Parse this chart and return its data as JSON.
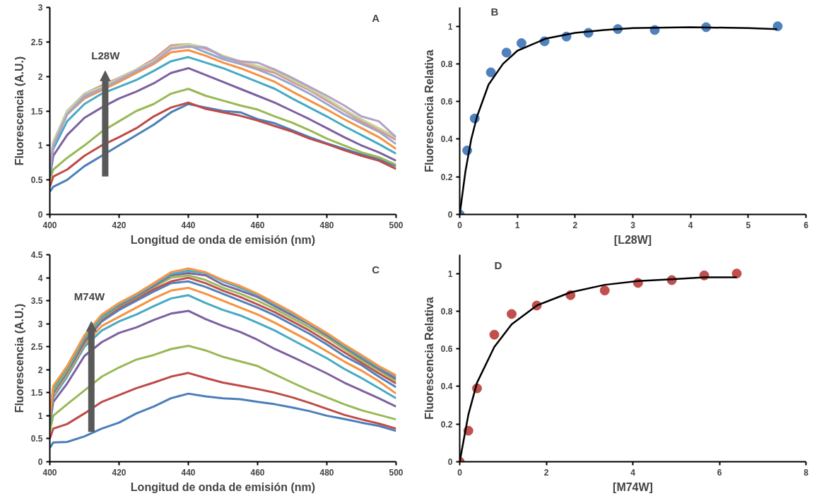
{
  "chart_data": [
    {
      "type": "line",
      "xlabel": "Longitud de onda de emisión (nm)",
      "ylabel": "Fluorescencia (A.U.)",
      "annotations": [
        "A",
        "L28W"
      ],
      "xlim": [
        400,
        500
      ],
      "ylim": [
        0,
        3
      ],
      "xticks": [
        400,
        420,
        440,
        460,
        480,
        500
      ],
      "yticks": [
        0,
        0.5,
        1,
        1.5,
        2,
        2.5,
        3
      ],
      "grid": false,
      "line_style": "solid",
      "marker": "none",
      "x": [
        400,
        401,
        405,
        410,
        415,
        420,
        425,
        430,
        435,
        440,
        445,
        450,
        455,
        460,
        465,
        470,
        475,
        480,
        485,
        490,
        495,
        500
      ],
      "series": [
        {
          "color": "#4a7ebb",
          "values": [
            0.33,
            0.4,
            0.5,
            0.7,
            0.85,
            1.0,
            1.15,
            1.3,
            1.48,
            1.6,
            1.55,
            1.5,
            1.48,
            1.38,
            1.32,
            1.22,
            1.12,
            1.03,
            0.95,
            0.87,
            0.8,
            0.7
          ]
        },
        {
          "color": "#be4b48",
          "values": [
            0.4,
            0.55,
            0.65,
            0.85,
            1.0,
            1.12,
            1.25,
            1.42,
            1.55,
            1.62,
            1.53,
            1.48,
            1.43,
            1.36,
            1.28,
            1.2,
            1.1,
            1.02,
            0.93,
            0.85,
            0.78,
            0.66
          ]
        },
        {
          "color": "#98b954",
          "values": [
            0.5,
            0.65,
            0.82,
            1.0,
            1.2,
            1.35,
            1.5,
            1.6,
            1.75,
            1.82,
            1.72,
            1.65,
            1.58,
            1.52,
            1.42,
            1.33,
            1.22,
            1.1,
            1.0,
            0.9,
            0.83,
            0.72
          ]
        },
        {
          "color": "#7d60a0",
          "values": [
            0.55,
            0.85,
            1.15,
            1.4,
            1.55,
            1.68,
            1.78,
            1.9,
            2.05,
            2.12,
            2.02,
            1.92,
            1.82,
            1.72,
            1.62,
            1.5,
            1.38,
            1.25,
            1.12,
            1.0,
            0.9,
            0.78
          ]
        },
        {
          "color": "#46aac5",
          "values": [
            0.6,
            0.95,
            1.35,
            1.6,
            1.75,
            1.85,
            1.95,
            2.08,
            2.22,
            2.28,
            2.2,
            2.12,
            2.02,
            1.92,
            1.82,
            1.68,
            1.55,
            1.42,
            1.28,
            1.15,
            1.02,
            0.88
          ]
        },
        {
          "color": "#f69240",
          "values": [
            0.65,
            1.0,
            1.45,
            1.68,
            1.8,
            1.92,
            2.05,
            2.18,
            2.35,
            2.38,
            2.3,
            2.2,
            2.12,
            2.02,
            1.92,
            1.78,
            1.65,
            1.52,
            1.38,
            1.25,
            1.12,
            0.95
          ]
        },
        {
          "color": "#94a8d0",
          "values": [
            0.65,
            1.0,
            1.45,
            1.7,
            1.82,
            1.95,
            2.08,
            2.2,
            2.4,
            2.45,
            2.35,
            2.25,
            2.18,
            2.1,
            2.0,
            1.88,
            1.75,
            1.6,
            1.45,
            1.32,
            1.2,
            1.02
          ]
        },
        {
          "color": "#d99694",
          "values": [
            0.7,
            1.05,
            1.5,
            1.75,
            1.87,
            1.98,
            2.1,
            2.25,
            2.45,
            2.47,
            2.4,
            2.3,
            2.2,
            2.12,
            2.05,
            1.92,
            1.8,
            1.65,
            1.5,
            1.35,
            1.22,
            1.08
          ]
        },
        {
          "color": "#c3d69b",
          "values": [
            0.7,
            1.05,
            1.5,
            1.75,
            1.85,
            1.97,
            2.1,
            2.22,
            2.42,
            2.47,
            2.42,
            2.3,
            2.22,
            2.15,
            2.08,
            1.95,
            1.82,
            1.68,
            1.52,
            1.38,
            1.25,
            1.12
          ]
        },
        {
          "color": "#b3a2c7",
          "values": [
            0.68,
            1.0,
            1.45,
            1.72,
            1.82,
            1.95,
            2.08,
            2.2,
            2.4,
            2.43,
            2.42,
            2.28,
            2.22,
            2.2,
            2.1,
            1.98,
            1.85,
            1.72,
            1.58,
            1.42,
            1.35,
            1.12
          ]
        }
      ]
    },
    {
      "type": "scatter",
      "xlabel": "[L28W]",
      "ylabel": "Fluorescencia Relativa",
      "annotations": [
        "B"
      ],
      "xlim": [
        0,
        6
      ],
      "ylim": [
        0,
        1.1
      ],
      "xticks": [
        0,
        1,
        2,
        3,
        4,
        5,
        6
      ],
      "yticks": [
        0,
        0.2,
        0.4,
        0.6,
        0.8,
        1
      ],
      "grid": false,
      "series": [
        {
          "marker": "circle",
          "color": "#4f81bd",
          "x": [
            0,
            0.13,
            0.26,
            0.54,
            0.81,
            1.07,
            1.47,
            1.85,
            2.23,
            2.74,
            3.38,
            4.27,
            5.51
          ],
          "values": [
            0,
            0.34,
            0.51,
            0.755,
            0.86,
            0.91,
            0.92,
            0.945,
            0.965,
            0.985,
            0.98,
            0.995,
            1.0
          ]
        },
        {
          "type": "line",
          "color": "#000000",
          "x": [
            0,
            0.1,
            0.2,
            0.3,
            0.5,
            0.75,
            1,
            1.5,
            2,
            2.5,
            3,
            4,
            5,
            5.5
          ],
          "values": [
            0,
            0.23,
            0.4,
            0.52,
            0.69,
            0.8,
            0.87,
            0.935,
            0.965,
            0.98,
            0.99,
            0.995,
            0.99,
            0.985
          ]
        }
      ]
    },
    {
      "type": "line",
      "xlabel": "Longitud de onda de emisión (nm)",
      "ylabel": "Fluorescencia (A.U.)",
      "annotations": [
        "C",
        "M74W"
      ],
      "xlim": [
        400,
        500
      ],
      "ylim": [
        0,
        4.5
      ],
      "xticks": [
        400,
        420,
        440,
        460,
        480,
        500
      ],
      "yticks": [
        0,
        0.5,
        1,
        1.5,
        2,
        2.5,
        3,
        3.5,
        4,
        4.5
      ],
      "grid": false,
      "line_style": "solid",
      "marker": "none",
      "x": [
        400,
        401,
        405,
        410,
        415,
        420,
        425,
        430,
        435,
        440,
        445,
        450,
        455,
        460,
        465,
        470,
        475,
        480,
        485,
        490,
        495,
        500
      ],
      "series": [
        {
          "color": "#4a7ebb",
          "values": [
            0.3,
            0.42,
            0.43,
            0.55,
            0.72,
            0.85,
            1.05,
            1.2,
            1.38,
            1.48,
            1.42,
            1.38,
            1.36,
            1.3,
            1.25,
            1.18,
            1.1,
            1.0,
            0.93,
            0.85,
            0.78,
            0.67
          ]
        },
        {
          "color": "#be4b48",
          "values": [
            0.5,
            0.72,
            0.82,
            1.05,
            1.3,
            1.45,
            1.6,
            1.72,
            1.85,
            1.93,
            1.82,
            1.72,
            1.65,
            1.58,
            1.5,
            1.4,
            1.28,
            1.15,
            1.02,
            0.92,
            0.83,
            0.72
          ]
        },
        {
          "color": "#98b954",
          "values": [
            0.65,
            1.0,
            1.25,
            1.55,
            1.85,
            2.05,
            2.22,
            2.32,
            2.45,
            2.52,
            2.42,
            2.28,
            2.18,
            2.08,
            1.9,
            1.72,
            1.55,
            1.4,
            1.25,
            1.12,
            1.02,
            0.92
          ]
        },
        {
          "color": "#7d60a0",
          "values": [
            0.8,
            1.3,
            1.7,
            2.3,
            2.6,
            2.8,
            2.92,
            3.08,
            3.22,
            3.28,
            3.1,
            2.95,
            2.82,
            2.65,
            2.45,
            2.28,
            2.1,
            1.92,
            1.72,
            1.55,
            1.38,
            1.2
          ]
        },
        {
          "color": "#46aac5",
          "values": [
            0.85,
            1.4,
            1.85,
            2.5,
            2.85,
            3.05,
            3.2,
            3.38,
            3.55,
            3.62,
            3.45,
            3.3,
            3.18,
            3.02,
            2.85,
            2.65,
            2.45,
            2.25,
            2.02,
            1.82,
            1.6,
            1.38
          ]
        },
        {
          "color": "#f69240",
          "values": [
            0.9,
            1.45,
            1.9,
            2.55,
            2.95,
            3.15,
            3.35,
            3.55,
            3.72,
            3.78,
            3.65,
            3.5,
            3.35,
            3.2,
            3.02,
            2.82,
            2.62,
            2.4,
            2.18,
            1.98,
            1.75,
            1.48
          ]
        },
        {
          "color": "#4f81bd",
          "values": [
            0.9,
            1.5,
            1.95,
            2.6,
            3.05,
            3.3,
            3.5,
            3.7,
            3.88,
            3.92,
            3.8,
            3.65,
            3.5,
            3.35,
            3.18,
            2.98,
            2.78,
            2.55,
            2.3,
            2.1,
            1.85,
            1.62
          ]
        },
        {
          "color": "#c0504d",
          "values": [
            0.95,
            1.55,
            2.0,
            2.65,
            3.1,
            3.35,
            3.55,
            3.75,
            3.92,
            4.0,
            3.88,
            3.72,
            3.58,
            3.42,
            3.25,
            3.05,
            2.85,
            2.62,
            2.38,
            2.15,
            1.92,
            1.7
          ]
        },
        {
          "color": "#9bbb59",
          "values": [
            0.95,
            1.55,
            2.0,
            2.68,
            3.12,
            3.38,
            3.58,
            3.8,
            4.0,
            4.05,
            3.95,
            3.78,
            3.65,
            3.5,
            3.32,
            3.12,
            2.92,
            2.7,
            2.45,
            2.2,
            1.98,
            1.75
          ]
        },
        {
          "color": "#8064a2",
          "values": [
            1.0,
            1.6,
            2.05,
            2.7,
            3.15,
            3.4,
            3.6,
            3.82,
            4.05,
            4.1,
            4.05,
            3.85,
            3.72,
            3.58,
            3.38,
            3.18,
            2.98,
            2.75,
            2.5,
            2.25,
            2.02,
            1.8
          ]
        },
        {
          "color": "#4bacc6",
          "values": [
            1.0,
            1.6,
            2.05,
            2.7,
            3.15,
            3.42,
            3.62,
            3.85,
            4.08,
            4.15,
            4.1,
            3.92,
            3.78,
            3.62,
            3.42,
            3.22,
            3.0,
            2.78,
            2.52,
            2.28,
            2.05,
            1.85
          ]
        },
        {
          "color": "#f79646",
          "values": [
            1.0,
            1.65,
            2.08,
            2.75,
            3.2,
            3.45,
            3.65,
            3.88,
            4.12,
            4.2,
            4.12,
            3.95,
            3.82,
            3.65,
            3.45,
            3.25,
            3.02,
            2.8,
            2.55,
            2.32,
            2.08,
            1.88
          ]
        }
      ]
    },
    {
      "type": "scatter",
      "xlabel": "[M74W]",
      "ylabel": "Fluorescencia Relativa",
      "annotations": [
        "D"
      ],
      "xlim": [
        0,
        8
      ],
      "ylim": [
        0,
        1.1
      ],
      "xticks": [
        0,
        2,
        4,
        6,
        8
      ],
      "yticks": [
        0,
        0.2,
        0.4,
        0.6,
        0.8,
        1
      ],
      "grid": false,
      "series": [
        {
          "marker": "circle",
          "color": "#c0504d",
          "x": [
            0,
            0.2,
            0.4,
            0.8,
            1.2,
            1.78,
            2.56,
            3.35,
            4.12,
            4.9,
            5.65,
            6.4
          ],
          "values": [
            0,
            0.165,
            0.39,
            0.675,
            0.785,
            0.83,
            0.885,
            0.91,
            0.95,
            0.965,
            0.99,
            1.0
          ]
        },
        {
          "type": "line",
          "color": "#000000",
          "x": [
            0,
            0.2,
            0.4,
            0.8,
            1.2,
            1.78,
            2.56,
            3.35,
            4.12,
            4.9,
            5.65,
            6.4
          ],
          "values": [
            0,
            0.25,
            0.42,
            0.61,
            0.73,
            0.83,
            0.9,
            0.94,
            0.96,
            0.97,
            0.98,
            0.98
          ]
        }
      ]
    }
  ]
}
